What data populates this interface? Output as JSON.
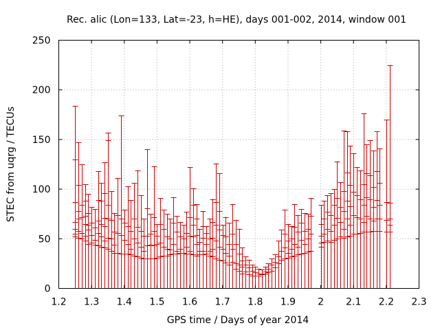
{
  "chart_data": {
    "type": "scatter",
    "title": "Rec. alic (Lon=133, Lat=-23, h=HE), days 001-002, 2014, window 001",
    "xlabel": "GPS time / Days of year 2014",
    "ylabel": "STEC from uqrg / TECUs",
    "xlim": [
      1.2,
      2.3
    ],
    "ylim": [
      0,
      250
    ],
    "xticks": [
      "1.2",
      "1.3",
      "1.4",
      "1.5",
      "1.6",
      "1.7",
      "1.8",
      "1.9",
      "2",
      "2.1",
      "2.2",
      "2.3"
    ],
    "yticks": [
      "0",
      "50",
      "100",
      "150",
      "200",
      "250"
    ],
    "grid": true,
    "legend": "none",
    "series_color": "#cc0000",
    "description_of_marks": "vertical lines from y=0 to the maximum value at each epoch, with horizontal tick marks at each satellite's STEC value",
    "epochs": [
      {
        "x": 1.25,
        "values": [
          184,
          130,
          87,
          67,
          60,
          55,
          52
        ]
      },
      {
        "x": 1.26,
        "values": [
          147,
          104,
          78,
          70,
          58,
          51
        ]
      },
      {
        "x": 1.27,
        "values": [
          125,
          84,
          72,
          56,
          50
        ]
      },
      {
        "x": 1.28,
        "values": [
          105,
          88,
          73,
          65,
          53,
          48
        ]
      },
      {
        "x": 1.29,
        "values": [
          95,
          76,
          64,
          59,
          45
        ]
      },
      {
        "x": 1.3,
        "values": [
          82,
          66,
          54,
          46
        ]
      },
      {
        "x": 1.31,
        "values": [
          80,
          61,
          49,
          44
        ]
      },
      {
        "x": 1.32,
        "values": [
          118,
          89,
          68,
          56,
          43
        ]
      },
      {
        "x": 1.33,
        "values": [
          106,
          88,
          65,
          52,
          42
        ]
      },
      {
        "x": 1.34,
        "values": [
          127,
          96,
          71,
          63,
          48,
          41
        ]
      },
      {
        "x": 1.35,
        "values": [
          157,
          149,
          84,
          70,
          51,
          40
        ]
      },
      {
        "x": 1.36,
        "values": [
          98,
          69,
          50,
          38
        ]
      },
      {
        "x": 1.37,
        "values": [
          76,
          57,
          44,
          36
        ]
      },
      {
        "x": 1.38,
        "values": [
          111,
          74,
          56,
          36
        ]
      },
      {
        "x": 1.39,
        "values": [
          174,
          70,
          54,
          35
        ]
      },
      {
        "x": 1.4,
        "values": [
          79,
          66,
          49,
          35
        ]
      },
      {
        "x": 1.41,
        "values": [
          103,
          63,
          45,
          35
        ]
      },
      {
        "x": 1.42,
        "values": [
          89,
          58,
          40,
          34
        ]
      },
      {
        "x": 1.43,
        "values": [
          106,
          70,
          50,
          33
        ]
      },
      {
        "x": 1.44,
        "values": [
          119,
          62,
          46,
          32
        ]
      },
      {
        "x": 1.45,
        "values": [
          94,
          58,
          42,
          31
        ]
      },
      {
        "x": 1.46,
        "values": [
          70,
          53,
          38,
          30
        ]
      },
      {
        "x": 1.47,
        "values": [
          140,
          81,
          53,
          43,
          30
        ]
      },
      {
        "x": 1.48,
        "values": [
          75,
          55,
          44,
          30
        ]
      },
      {
        "x": 1.49,
        "values": [
          123,
          72,
          58,
          43,
          30
        ]
      },
      {
        "x": 1.5,
        "values": [
          65,
          53,
          45,
          31
        ]
      },
      {
        "x": 1.51,
        "values": [
          91,
          65,
          46,
          32
        ]
      },
      {
        "x": 1.52,
        "values": [
          79,
          60,
          42,
          33
        ]
      },
      {
        "x": 1.53,
        "values": [
          75,
          52,
          40,
          33
        ]
      },
      {
        "x": 1.54,
        "values": [
          70,
          50,
          39,
          34
        ]
      },
      {
        "x": 1.55,
        "values": [
          92,
          66,
          45,
          35
        ]
      },
      {
        "x": 1.56,
        "values": [
          73,
          57,
          38,
          35
        ]
      },
      {
        "x": 1.57,
        "values": [
          67,
          52,
          40,
          36
        ]
      },
      {
        "x": 1.58,
        "values": [
          64,
          50,
          36
        ]
      },
      {
        "x": 1.59,
        "values": [
          77,
          56,
          42,
          35
        ]
      },
      {
        "x": 1.6,
        "values": [
          122,
          72,
          53,
          38,
          35
        ]
      },
      {
        "x": 1.61,
        "values": [
          101,
          84,
          64,
          52,
          34
        ]
      },
      {
        "x": 1.62,
        "values": [
          85,
          70,
          54,
          45,
          33
        ]
      },
      {
        "x": 1.63,
        "values": [
          60,
          47,
          38,
          34
        ]
      },
      {
        "x": 1.64,
        "values": [
          78,
          63,
          51,
          38,
          34
        ]
      },
      {
        "x": 1.65,
        "values": [
          63,
          56,
          45,
          35
        ]
      },
      {
        "x": 1.66,
        "values": [
          70,
          50,
          38,
          33
        ]
      },
      {
        "x": 1.67,
        "values": [
          90,
          67,
          51,
          40,
          32
        ]
      },
      {
        "x": 1.68,
        "values": [
          126,
          87,
          64,
          48,
          30
        ]
      },
      {
        "x": 1.69,
        "values": [
          116,
          78,
          59,
          42,
          29
        ]
      },
      {
        "x": 1.7,
        "values": [
          64,
          54,
          40,
          28
        ]
      },
      {
        "x": 1.71,
        "values": [
          72,
          52,
          36,
          26
        ]
      },
      {
        "x": 1.72,
        "values": [
          66,
          45,
          33,
          24
        ]
      },
      {
        "x": 1.73,
        "values": [
          85,
          55,
          40,
          27
        ]
      },
      {
        "x": 1.74,
        "values": [
          69,
          45,
          25,
          20
        ]
      },
      {
        "x": 1.75,
        "values": [
          60,
          35,
          24,
          18
        ]
      },
      {
        "x": 1.76,
        "values": [
          41,
          28,
          22,
          15
        ]
      },
      {
        "x": 1.77,
        "values": [
          32,
          24,
          17
        ]
      },
      {
        "x": 1.78,
        "values": [
          29,
          21,
          14
        ]
      },
      {
        "x": 1.79,
        "values": [
          24,
          18,
          13
        ]
      },
      {
        "x": 1.8,
        "values": [
          22,
          16,
          13
        ]
      },
      {
        "x": 1.81,
        "values": [
          20,
          15,
          13
        ]
      },
      {
        "x": 1.82,
        "values": [
          19,
          15,
          14
        ]
      },
      {
        "x": 1.83,
        "values": [
          22,
          17,
          15
        ]
      },
      {
        "x": 1.84,
        "values": [
          25,
          20,
          16
        ]
      },
      {
        "x": 1.85,
        "values": [
          30,
          24,
          18
        ]
      },
      {
        "x": 1.86,
        "values": [
          34,
          27,
          21
        ]
      },
      {
        "x": 1.87,
        "values": [
          48,
          32,
          25
        ]
      },
      {
        "x": 1.88,
        "values": [
          59,
          38,
          29
        ]
      },
      {
        "x": 1.89,
        "values": [
          79,
          55,
          41,
          30
        ]
      },
      {
        "x": 1.9,
        "values": [
          65,
          48,
          36,
          31
        ]
      },
      {
        "x": 1.91,
        "values": [
          63,
          50,
          40,
          32
        ]
      },
      {
        "x": 1.92,
        "values": [
          85,
          62,
          45,
          33
        ]
      },
      {
        "x": 1.93,
        "values": [
          74,
          57,
          42,
          34
        ]
      },
      {
        "x": 1.94,
        "values": [
          80,
          66,
          49,
          35
        ]
      },
      {
        "x": 1.95,
        "values": [
          76,
          58,
          45,
          36
        ]
      },
      {
        "x": 1.96,
        "values": [
          75,
          60,
          50,
          37
        ]
      },
      {
        "x": 1.97,
        "values": [
          91,
          73,
          55,
          38
        ]
      },
      {
        "x": 2.0,
        "values": [
          84,
          65,
          53,
          46,
          42
        ]
      },
      {
        "x": 2.01,
        "values": [
          88,
          70,
          55,
          47
        ]
      },
      {
        "x": 2.02,
        "values": [
          94,
          77,
          60,
          48
        ]
      },
      {
        "x": 2.03,
        "values": [
          96,
          74,
          58,
          47
        ]
      },
      {
        "x": 2.04,
        "values": [
          100,
          84,
          64,
          49
        ]
      },
      {
        "x": 2.05,
        "values": [
          128,
          91,
          71,
          50
        ]
      },
      {
        "x": 2.06,
        "values": [
          107,
          82,
          67,
          52
        ]
      },
      {
        "x": 2.07,
        "values": [
          159,
          98,
          78,
          60,
          51
        ]
      },
      {
        "x": 2.08,
        "values": [
          158,
          117,
          88,
          70,
          52
        ]
      },
      {
        "x": 2.09,
        "values": [
          144,
          104,
          83,
          64,
          53
        ]
      },
      {
        "x": 2.1,
        "values": [
          136,
          97,
          74,
          55
        ]
      },
      {
        "x": 2.11,
        "values": [
          122,
          94,
          72,
          55
        ]
      },
      {
        "x": 2.12,
        "values": [
          119,
          90,
          70,
          56
        ]
      },
      {
        "x": 2.13,
        "values": [
          176,
          105,
          84,
          67,
          57
        ]
      },
      {
        "x": 2.14,
        "values": [
          145,
          116,
          92,
          73,
          57
        ]
      },
      {
        "x": 2.15,
        "values": [
          149,
          114,
          90,
          70,
          57
        ]
      },
      {
        "x": 2.16,
        "values": [
          139,
          102,
          82,
          68,
          58
        ]
      },
      {
        "x": 2.17,
        "values": [
          158,
          118,
          89,
          70,
          58
        ]
      },
      {
        "x": 2.18,
        "values": [
          141,
          106,
          84,
          70,
          58
        ]
      },
      {
        "x": 2.2,
        "values": [
          170,
          87,
          69,
          57
        ]
      },
      {
        "x": 2.21,
        "values": [
          225,
          86,
          70,
          64,
          57
        ]
      }
    ]
  }
}
